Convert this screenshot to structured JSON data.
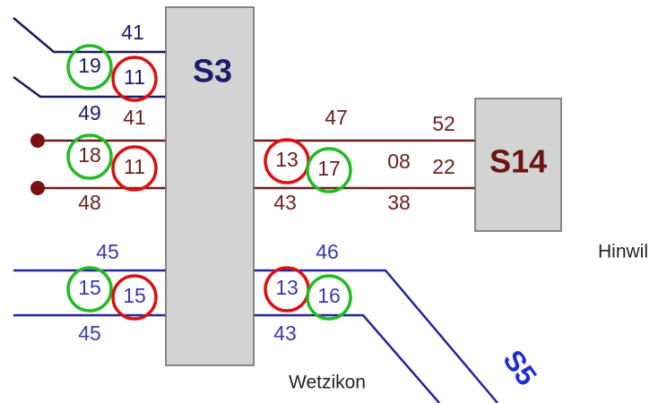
{
  "stations": {
    "s3": "S3",
    "s14": "S14",
    "s5": "S5"
  },
  "places": {
    "hinwil": "Hinwil",
    "wetzikon": "Wetzikon"
  },
  "labels": [
    "41",
    "19",
    "11",
    "49",
    "41",
    "18",
    "11",
    "48",
    "47",
    "13",
    "17",
    "43",
    "52",
    "08",
    "22",
    "38",
    "45",
    "15",
    "15",
    "45",
    "46",
    "13",
    "16",
    "43"
  ]
}
